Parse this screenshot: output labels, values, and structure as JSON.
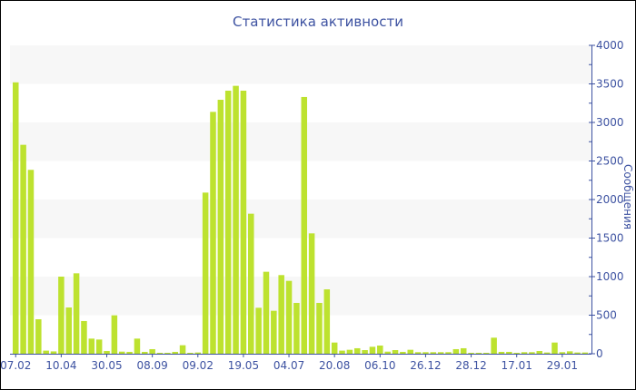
{
  "chart_data": {
    "type": "bar",
    "title": "Статистика активности",
    "ylabel": "Сообщения",
    "xlabel": "",
    "ylim": [
      0,
      4000
    ],
    "yticks": [
      0,
      500,
      1000,
      1500,
      2000,
      2500,
      3000,
      3500,
      4000
    ],
    "y_axis_side": "right",
    "grid": "alternating horizontal bands",
    "bar_color": "#bde22f",
    "text_color": "#3d52a1",
    "categories": [
      "07.02",
      "",
      "",
      "",
      "",
      "",
      "10.04",
      "",
      "",
      "",
      "",
      "",
      "30.05",
      "",
      "",
      "",
      "",
      "",
      "08.09",
      "",
      "",
      "",
      "",
      "",
      "09.02",
      "",
      "",
      "",
      "",
      "",
      "19.05",
      "",
      "",
      "",
      "",
      "",
      "04.07",
      "",
      "",
      "",
      "",
      "",
      "20.08",
      "",
      "",
      "",
      "",
      "",
      "06.10",
      "",
      "",
      "",
      "",
      "",
      "26.12",
      "",
      "",
      "",
      "",
      "",
      "28.12",
      "",
      "",
      "",
      "",
      "",
      "17.01",
      "",
      "",
      "",
      "",
      "",
      "29.01",
      "",
      "",
      ""
    ],
    "values": [
      3520,
      2710,
      2385,
      447,
      40,
      30,
      1000,
      600,
      1043,
      424,
      196,
      184,
      35,
      498,
      27,
      24,
      196,
      24,
      59,
      12,
      12,
      24,
      110,
      12,
      16,
      2090,
      3137,
      3294,
      3412,
      3475,
      3412,
      1816,
      596,
      1063,
      557,
      1020,
      945,
      659,
      3330,
      1561,
      659,
      835,
      145,
      40,
      51,
      71,
      47,
      90,
      106,
      27,
      47,
      24,
      51,
      20,
      20,
      20,
      20,
      20,
      59,
      71,
      12,
      12,
      12,
      208,
      24,
      24,
      12,
      20,
      20,
      35,
      16,
      145,
      20,
      31,
      16,
      16
    ]
  }
}
